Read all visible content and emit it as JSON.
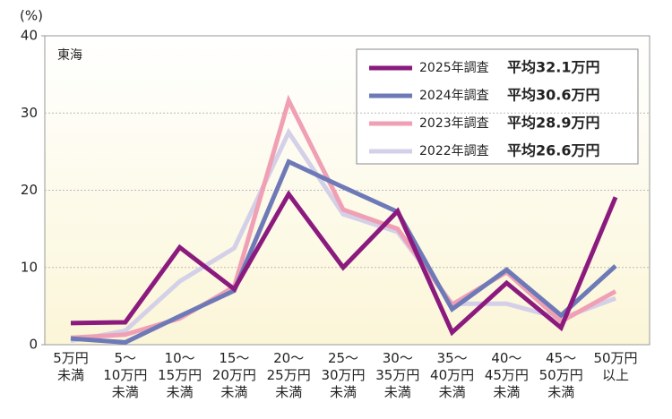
{
  "chart_data": {
    "type": "line",
    "y_label": "(%)",
    "annotation": "東海",
    "categories": [
      "5万円\n未満",
      "5〜\n10万円\n未満",
      "10〜\n15万円\n未満",
      "15〜\n20万円\n未満",
      "20〜\n25万円\n未満",
      "25〜\n30万円\n未満",
      "30〜\n35万円\n未満",
      "35〜\n40万円\n未満",
      "40〜\n45万円\n未満",
      "45〜\n50万円\n未満",
      "50万円\n以上"
    ],
    "series": [
      {
        "name": "2025年調査",
        "average": "平均32.1万円",
        "color": "#8b1a7e",
        "values": [
          2.8,
          2.9,
          12.6,
          7.2,
          19.5,
          10.0,
          17.3,
          1.6,
          8.0,
          2.2,
          19.1
        ]
      },
      {
        "name": "2024年調査",
        "average": "平均30.6万円",
        "color": "#6e79b8",
        "values": [
          0.8,
          0.3,
          3.7,
          7.0,
          23.7,
          20.4,
          17.2,
          4.6,
          9.7,
          3.8,
          10.2
        ]
      },
      {
        "name": "2023年調査",
        "average": "平均28.9万円",
        "color": "#f0a0b4",
        "values": [
          0.9,
          1.3,
          3.4,
          7.5,
          31.6,
          17.5,
          15.0,
          5.2,
          9.4,
          3.0,
          6.9
        ]
      },
      {
        "name": "2022年調査",
        "average": "平均26.6万円",
        "color": "#d4d0e8",
        "values": [
          0.5,
          1.8,
          8.2,
          12.5,
          27.5,
          16.9,
          14.6,
          5.3,
          5.3,
          3.4,
          6.0
        ]
      }
    ],
    "ylim": [
      0,
      40
    ],
    "yticks": [
      0,
      10,
      20,
      30,
      40
    ],
    "grid": true
  }
}
